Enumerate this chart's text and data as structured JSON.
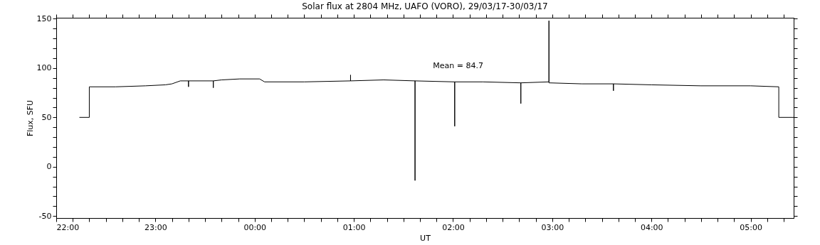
{
  "chart_data": {
    "type": "line",
    "title": "Solar flux at 2804 MHz, UAFO (VORO),  29/03/17-30/03/17",
    "xlabel": "UT",
    "ylabel": "Flux, SFU",
    "x": [
      "--03-29T22:14",
      "--03-29T22:20",
      "--03-29T22:20",
      "--03-29T22:36",
      "--03-29T22:54",
      "--03-29T23:06",
      "--03-29T23:10",
      "--03-29T23:15",
      "--03-29T23:20",
      "--03-29T23:20",
      "--03-29T23:20",
      "--03-29T23:35",
      "--03-29T23:35",
      "--03-29T23:35",
      "--03-29T23:40",
      "--03-29T23:51",
      "--03-30T00:03",
      "--03-30T00:06",
      "--03-30T00:30",
      "--03-30T00:58",
      "--03-30T00:58",
      "--03-30T00:58",
      "--03-30T01:18",
      "--03-30T01:37",
      "--03-30T01:37",
      "--03-30T01:37",
      "--03-30T02:01",
      "--03-30T02:01",
      "--03-30T02:01",
      "--03-30T02:18",
      "--03-30T02:41",
      "--03-30T02:41",
      "--03-30T02:41",
      "--03-30T02:58",
      "--03-30T02:58",
      "--03-30T02:58",
      "--03-30T03:18",
      "--03-30T03:37",
      "--03-30T03:37",
      "--03-30T03:37",
      "--03-30T04:00",
      "--03-30T04:30",
      "--03-30T05:00",
      "--03-30T05:17",
      "--03-30T05:17",
      "--03-30T05:26"
    ],
    "series": [
      {
        "color": "#000000",
        "values": [
          50,
          50,
          81,
          81,
          82,
          83,
          84,
          87,
          87,
          81,
          87,
          87,
          80,
          87,
          88,
          89,
          89,
          86,
          86,
          87,
          93,
          87,
          88,
          87,
          -14,
          87,
          86,
          41,
          86,
          86,
          85,
          64,
          85,
          86,
          148,
          85,
          84,
          84,
          77,
          84,
          83,
          82,
          82,
          81,
          50,
          50
        ]
      }
    ],
    "xlim": [
      "--03-29T22:00",
      "--03-30T05:26"
    ],
    "ylim": [
      -52,
      151
    ],
    "xticks": [
      {
        "value": "--03-29T22:00",
        "label": "22:00"
      },
      {
        "value": "--03-29T22:10",
        "label": null
      },
      {
        "value": "--03-29T22:20",
        "label": null
      },
      {
        "value": "--03-29T22:30",
        "label": null
      },
      {
        "value": "--03-29T22:40",
        "label": null
      },
      {
        "value": "--03-29T22:50",
        "label": null
      },
      {
        "value": "--03-29T23:00",
        "label": "23:00"
      },
      {
        "value": "--03-29T23:10",
        "label": null
      },
      {
        "value": "--03-29T23:20",
        "label": null
      },
      {
        "value": "--03-29T23:30",
        "label": null
      },
      {
        "value": "--03-29T23:40",
        "label": null
      },
      {
        "value": "--03-29T23:50",
        "label": null
      },
      {
        "value": "--03-30T00:00",
        "label": "00:00"
      },
      {
        "value": "--03-30T00:10",
        "label": null
      },
      {
        "value": "--03-30T00:20",
        "label": null
      },
      {
        "value": "--03-30T00:30",
        "label": null
      },
      {
        "value": "--03-30T00:40",
        "label": null
      },
      {
        "value": "--03-30T00:50",
        "label": null
      },
      {
        "value": "--03-30T01:00",
        "label": "01:00"
      },
      {
        "value": "--03-30T01:10",
        "label": null
      },
      {
        "value": "--03-30T01:20",
        "label": null
      },
      {
        "value": "--03-30T01:30",
        "label": null
      },
      {
        "value": "--03-30T01:40",
        "label": null
      },
      {
        "value": "--03-30T01:50",
        "label": null
      },
      {
        "value": "--03-30T02:00",
        "label": "02:00"
      },
      {
        "value": "--03-30T02:10",
        "label": null
      },
      {
        "value": "--03-30T02:20",
        "label": null
      },
      {
        "value": "--03-30T02:30",
        "label": null
      },
      {
        "value": "--03-30T02:40",
        "label": null
      },
      {
        "value": "--03-30T02:50",
        "label": null
      },
      {
        "value": "--03-30T03:00",
        "label": "03:00"
      },
      {
        "value": "--03-30T03:10",
        "label": null
      },
      {
        "value": "--03-30T03:20",
        "label": null
      },
      {
        "value": "--03-30T03:30",
        "label": null
      },
      {
        "value": "--03-30T03:40",
        "label": null
      },
      {
        "value": "--03-30T03:50",
        "label": null
      },
      {
        "value": "--03-30T04:00",
        "label": "04:00"
      },
      {
        "value": "--03-30T04:10",
        "label": null
      },
      {
        "value": "--03-30T04:20",
        "label": null
      },
      {
        "value": "--03-30T04:30",
        "label": null
      },
      {
        "value": "--03-30T04:40",
        "label": null
      },
      {
        "value": "--03-30T04:50",
        "label": null
      },
      {
        "value": "--03-30T05:00",
        "label": "05:00"
      },
      {
        "value": "--03-30T05:10",
        "label": null
      },
      {
        "value": "--03-30T05:20",
        "label": null
      }
    ],
    "yticks": [
      -50,
      {
        "value": -40,
        "label": null
      },
      {
        "value": -30,
        "label": null
      },
      {
        "value": -20,
        "label": null
      },
      {
        "value": -10,
        "label": null
      },
      0,
      {
        "value": 10,
        "label": null
      },
      {
        "value": 20,
        "label": null
      },
      {
        "value": 30,
        "label": null
      },
      {
        "value": 40,
        "label": null
      },
      50,
      {
        "value": 60,
        "label": null
      },
      {
        "value": 70,
        "label": null
      },
      {
        "value": 80,
        "label": null
      },
      {
        "value": 90,
        "label": null
      },
      100,
      {
        "value": 110,
        "label": null
      },
      {
        "value": 120,
        "label": null
      },
      {
        "value": 130,
        "label": null
      },
      {
        "value": 140,
        "label": null
      },
      150
    ],
    "annotations": [
      "Mean =    84.7"
    ]
  }
}
